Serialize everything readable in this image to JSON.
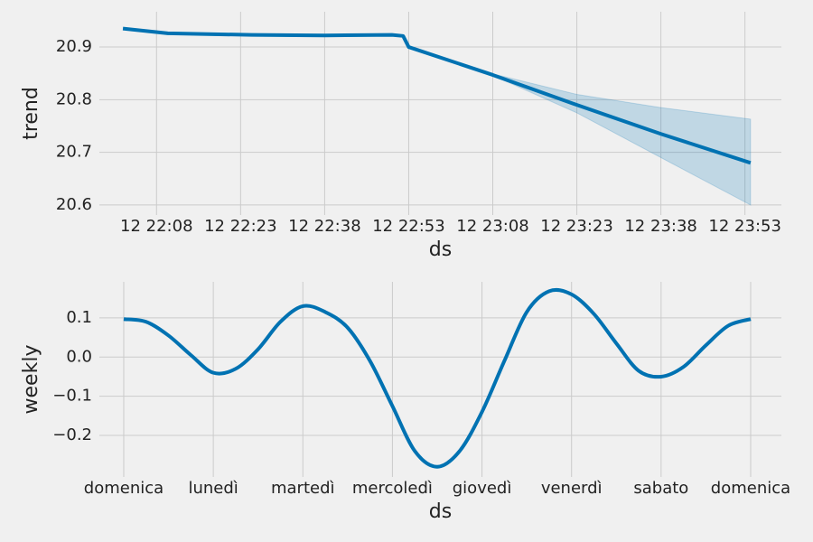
{
  "chart_data": [
    {
      "type": "line",
      "xlabel": "ds",
      "ylabel": "trend",
      "x": [
        1322,
        1330,
        1345,
        1358,
        1370,
        1372,
        1373,
        1388,
        1403,
        1418,
        1434
      ],
      "series": [
        {
          "name": "trend",
          "color": "#0072B2",
          "values": [
            20.935,
            20.926,
            20.923,
            20.922,
            20.923,
            20.921,
            20.9,
            20.847,
            20.79,
            20.735,
            20.68
          ]
        }
      ],
      "band": {
        "color": "#0072B2",
        "x": [
          1388,
          1403,
          1418,
          1434
        ],
        "lower": [
          20.846,
          20.775,
          20.69,
          20.6
        ],
        "upper": [
          20.849,
          20.81,
          20.785,
          20.763
        ]
      },
      "xlim": [
        1317.8,
        1439.5
      ],
      "xticks": [
        {
          "value": 1328,
          "label": "12 22:08"
        },
        {
          "value": 1343,
          "label": "12 22:23"
        },
        {
          "value": 1358,
          "label": "12 22:38"
        },
        {
          "value": 1373,
          "label": "12 22:53"
        },
        {
          "value": 1388,
          "label": "12 23:08"
        },
        {
          "value": 1403,
          "label": "12 23:23"
        },
        {
          "value": 1418,
          "label": "12 23:38"
        },
        {
          "value": 1433,
          "label": "12 23:53"
        }
      ],
      "ylim": [
        20.581,
        20.967
      ],
      "yticks": [
        20.6,
        20.7,
        20.8,
        20.9
      ],
      "grid": true
    },
    {
      "type": "line",
      "xlabel": "ds",
      "ylabel": "weekly",
      "x": [
        0,
        0.25,
        0.5,
        0.75,
        1,
        1.25,
        1.5,
        1.75,
        2,
        2.25,
        2.5,
        2.75,
        3,
        3.25,
        3.5,
        3.75,
        4,
        4.25,
        4.5,
        4.75,
        5,
        5.25,
        5.5,
        5.75,
        6,
        6.25,
        6.5,
        6.75,
        7
      ],
      "series": [
        {
          "name": "weekly",
          "color": "#0072B2",
          "values": [
            0.097,
            0.09,
            0.055,
            0.005,
            -0.04,
            -0.03,
            0.02,
            0.09,
            0.13,
            0.115,
            0.075,
            -0.01,
            -0.125,
            -0.24,
            -0.28,
            -0.24,
            -0.14,
            -0.01,
            0.115,
            0.168,
            0.16,
            0.11,
            0.035,
            -0.035,
            -0.05,
            -0.025,
            0.03,
            0.08,
            0.097
          ]
        }
      ],
      "xlim": [
        -0.272,
        7.343
      ],
      "xticks": [
        {
          "value": 0,
          "label": "domenica"
        },
        {
          "value": 1,
          "label": "lunedì"
        },
        {
          "value": 2,
          "label": "martedì"
        },
        {
          "value": 3,
          "label": "mercoledì"
        },
        {
          "value": 4,
          "label": "giovedì"
        },
        {
          "value": 5,
          "label": "venerdì"
        },
        {
          "value": 6,
          "label": "sabato"
        },
        {
          "value": 7,
          "label": "domenica"
        }
      ],
      "ylim": [
        -0.306,
        0.192
      ],
      "yticks": [
        {
          "value": -0.2,
          "label": "−0.2"
        },
        {
          "value": -0.1,
          "label": "−0.1"
        },
        {
          "value": 0,
          "label": "0.0"
        },
        {
          "value": 0.1,
          "label": "0.1"
        }
      ],
      "grid": true
    }
  ]
}
